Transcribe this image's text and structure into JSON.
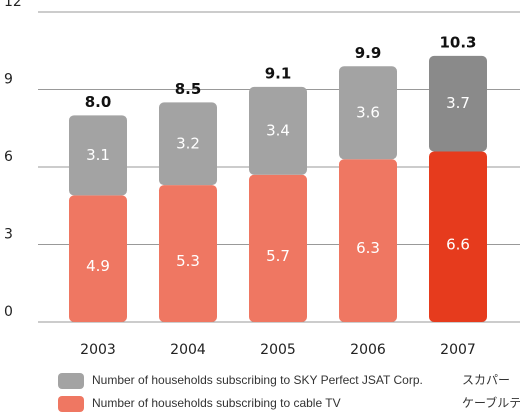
{
  "chart_data": {
    "type": "stacked_bar",
    "categories": [
      "2003",
      "2004",
      "2005",
      "2006",
      "2007"
    ],
    "series": [
      {
        "name": "Number of households subscribing to cable TV",
        "color": "#ef7762",
        "colors": [
          "#ef7762",
          "#ef7762",
          "#ef7762",
          "#ef7762",
          "#e63b1d"
        ],
        "values": [
          4.9,
          5.3,
          5.7,
          6.3,
          6.6
        ]
      },
      {
        "name": "Number of households subscribing to SKY Perfect JSAT Corp.",
        "color": "#a3a3a3",
        "colors": [
          "#a3a3a3",
          "#a3a3a3",
          "#a3a3a3",
          "#a3a3a3",
          "#8a8a8a"
        ],
        "values": [
          3.1,
          3.2,
          3.4,
          3.6,
          3.7
        ]
      }
    ],
    "totals": [
      8,
      8.5,
      9.1,
      9.9,
      10.3
    ],
    "totals_labels": [
      "8.0",
      "8.5",
      "9.1",
      "9.9",
      "10.3"
    ],
    "legend_extra": [
      "スカパー",
      "ケーブルテ"
    ],
    "ylim": [
      0,
      12
    ],
    "yticks": [
      0,
      3,
      6,
      9,
      12
    ],
    "grid": true
  }
}
